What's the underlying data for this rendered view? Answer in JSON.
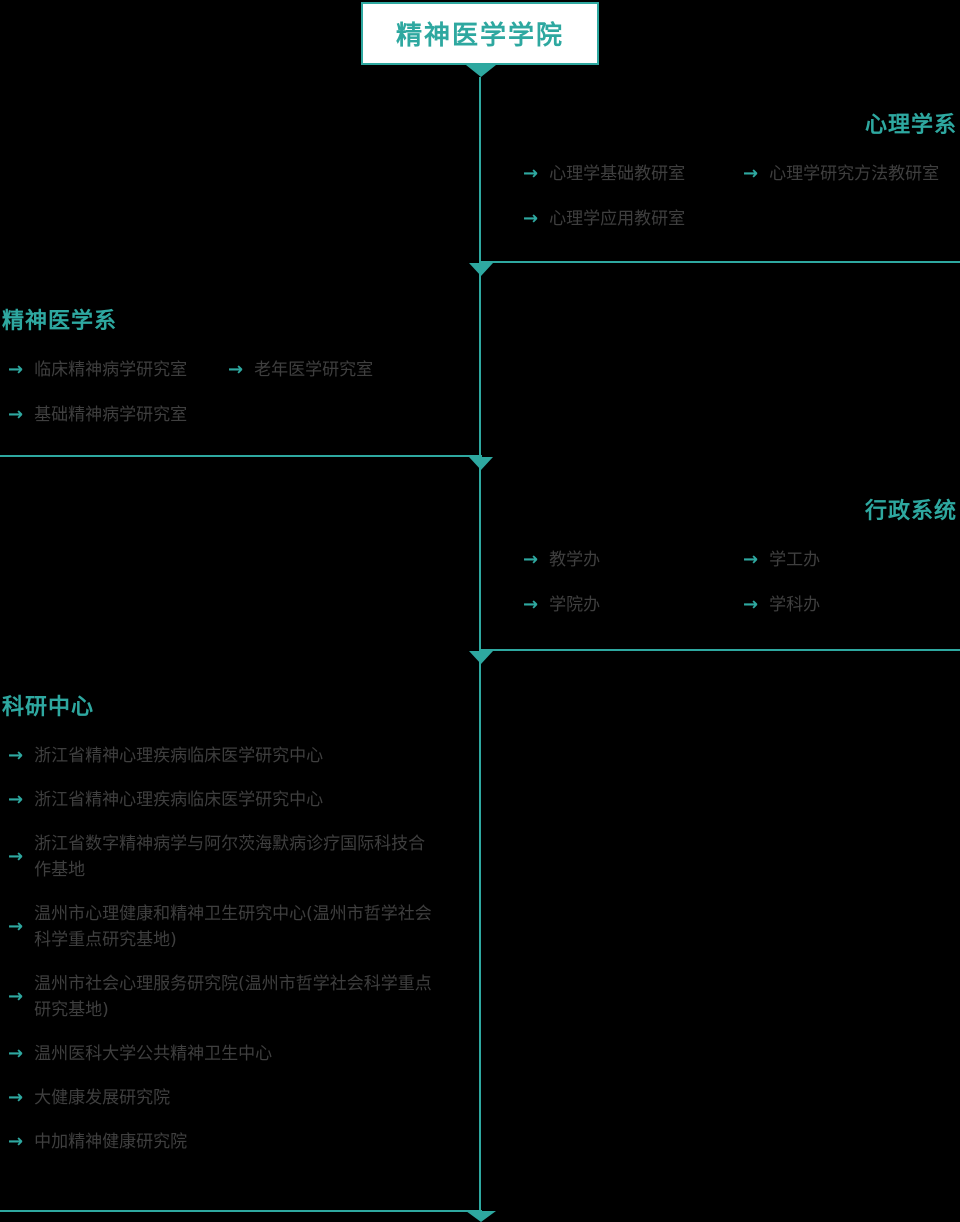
{
  "ui": {
    "arrow": "→"
  },
  "colors": {
    "accent_teal": "#2EA8A0",
    "item_text": "#3F3F3F",
    "background": "#000000",
    "root_box_bg": "#FFFFFF"
  },
  "root": {
    "title": "精神医学学院"
  },
  "sections": [
    {
      "title": "心理学系",
      "side": "right",
      "items": [
        {
          "label": "心理学基础教研室"
        },
        {
          "label": "心理学研究方法教研室"
        },
        {
          "label": "心理学应用教研室"
        }
      ]
    },
    {
      "title": "精神医学系",
      "side": "left",
      "items": [
        {
          "label": "临床精神病学研究室"
        },
        {
          "label": "老年医学研究室"
        },
        {
          "label": "基础精神病学研究室"
        }
      ]
    },
    {
      "title": "行政系统",
      "side": "right",
      "items": [
        {
          "label": "教学办"
        },
        {
          "label": "学工办"
        },
        {
          "label": "学院办"
        },
        {
          "label": "学科办"
        }
      ]
    },
    {
      "title": "科研中心",
      "side": "left",
      "items": [
        {
          "label": "浙江省精神心理疾病临床医学研究中心"
        },
        {
          "label": "浙江省精神心理疾病临床医学研究中心"
        },
        {
          "label": "浙江省数字精神病学与阿尔茨海默病诊疗国际科技合作基地"
        },
        {
          "label": "温州市心理健康和精神卫生研究中心(温州市哲学社会科学重点研究基地)"
        },
        {
          "label": "温州市社会心理服务研究院(温州市哲学社会科学重点研究基地)"
        },
        {
          "label": "温州医科大学公共精神卫生中心"
        },
        {
          "label": "大健康发展研究院"
        },
        {
          "label": "中加精神健康研究院"
        }
      ]
    }
  ]
}
